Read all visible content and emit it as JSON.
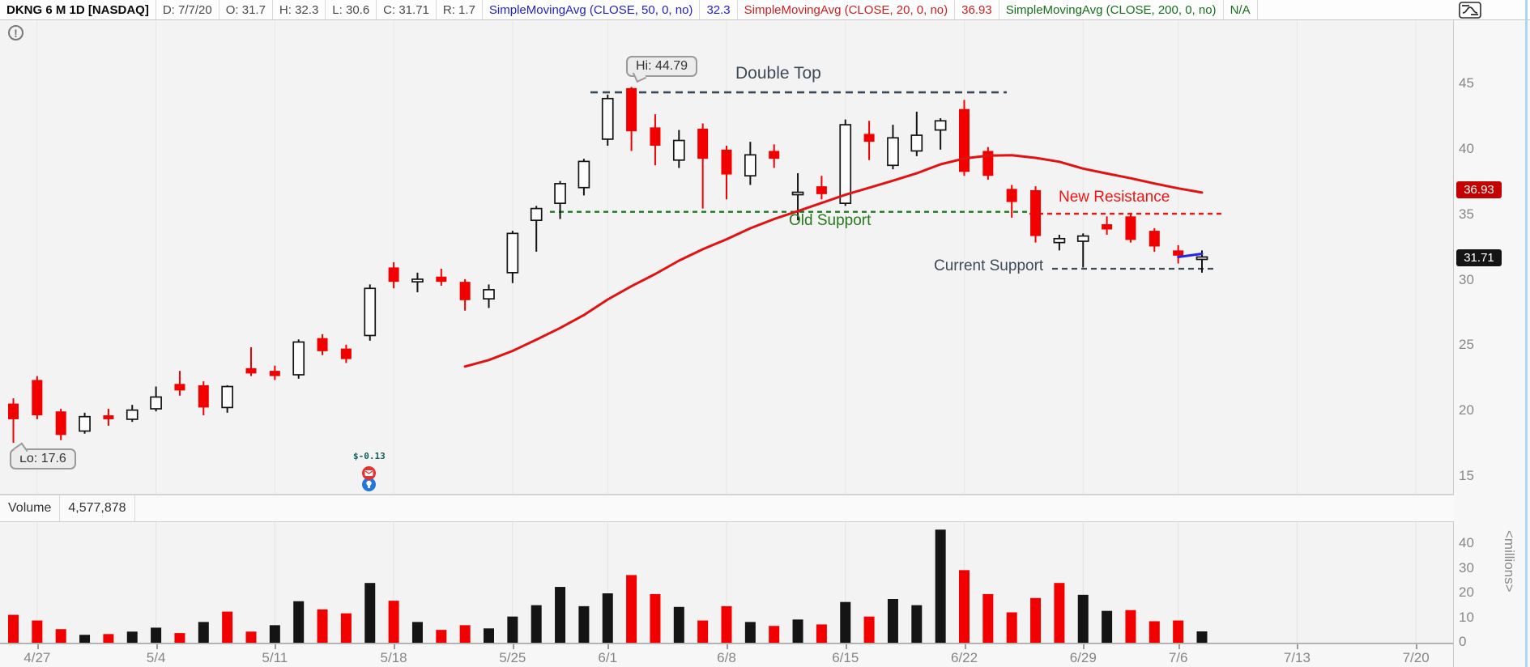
{
  "toolbar": {
    "cells": [
      {
        "text": "DKNG 6 M 1D [NASDAQ]",
        "style": "sym"
      },
      {
        "text": "D: 7/7/20",
        "style": "plain"
      },
      {
        "text": "O: 31.7",
        "style": "plain"
      },
      {
        "text": "H: 32.3",
        "style": "plain"
      },
      {
        "text": "L: 30.6",
        "style": "plain"
      },
      {
        "text": "C: 31.71",
        "style": "plain"
      },
      {
        "text": "R: 1.7",
        "style": "plain"
      },
      {
        "text": "SimpleMovingAvg (CLOSE, 50, 0, no)",
        "style": "blue"
      },
      {
        "text": "32.3",
        "style": "blue"
      },
      {
        "text": "SimpleMovingAvg (CLOSE, 20, 0, no)",
        "style": "red"
      },
      {
        "text": "36.93",
        "style": "red"
      },
      {
        "text": "SimpleMovingAvg (CLOSE, 200, 0, no)",
        "style": "green"
      },
      {
        "text": "N/A",
        "style": "green"
      }
    ],
    "colors": {
      "blue": "#2323cc",
      "red": "#cf2020",
      "green": "#17701c"
    }
  },
  "volume_header": {
    "label": "Volume",
    "value": "4,577,878"
  },
  "badges": {
    "sma20": "36.93",
    "last_price": "31.71"
  },
  "tooltips": {
    "hi": "Hi: 44.79",
    "lo": "Lo: 17.6"
  },
  "info_icon": "!",
  "earnings_marker": {
    "label": "$-0.13"
  },
  "millions_label": "<millions>",
  "chart_data": {
    "type": "candlestick",
    "title": "DKNG 6 M 1D [NASDAQ]",
    "ylim": [
      15,
      46
    ],
    "price_axis_ticks": [
      45,
      40,
      35,
      30,
      25,
      20,
      15
    ],
    "volume_axis_ticks": [
      40,
      30,
      20,
      10,
      0
    ],
    "x_gridlines": [
      {
        "label": "4/27",
        "k": 1
      },
      {
        "label": "5/4",
        "k": 6
      },
      {
        "label": "5/11",
        "k": 11
      },
      {
        "label": "5/18",
        "k": 16
      },
      {
        "label": "5/25",
        "k": 21
      },
      {
        "label": "6/1",
        "k": 25
      },
      {
        "label": "6/8",
        "k": 30
      },
      {
        "label": "6/15",
        "k": 35
      },
      {
        "label": "6/22",
        "k": 40
      },
      {
        "label": "6/29",
        "k": 45
      },
      {
        "label": "7/6",
        "k": 49
      },
      {
        "label": "7/13",
        "k": 54
      },
      {
        "label": "7/20",
        "k": 59
      }
    ],
    "dates": [
      "4/24",
      "4/27",
      "4/28",
      "4/29",
      "4/30",
      "5/1",
      "5/4",
      "5/5",
      "5/6",
      "5/7",
      "5/8",
      "5/11",
      "5/12",
      "5/13",
      "5/14",
      "5/15",
      "5/18",
      "5/19",
      "5/20",
      "5/21",
      "5/22",
      "5/26",
      "5/27",
      "5/28",
      "5/29",
      "6/1",
      "6/2",
      "6/3",
      "6/4",
      "6/5",
      "6/8",
      "6/9",
      "6/10",
      "6/11",
      "6/12",
      "6/15",
      "6/16",
      "6/17",
      "6/18",
      "6/19",
      "6/22",
      "6/23",
      "6/24",
      "6/25",
      "6/26",
      "6/29",
      "6/30",
      "7/1",
      "7/2",
      "7/6",
      "7/7"
    ],
    "ohlc": [
      [
        20.6,
        21.0,
        17.6,
        19.4
      ],
      [
        22.4,
        22.7,
        19.4,
        19.7
      ],
      [
        20.0,
        20.2,
        17.8,
        18.2
      ],
      [
        18.5,
        19.9,
        18.3,
        19.6
      ],
      [
        19.7,
        20.2,
        18.9,
        19.4
      ],
      [
        19.4,
        20.5,
        19.2,
        20.1
      ],
      [
        20.2,
        21.9,
        20.0,
        21.1
      ],
      [
        22.1,
        23.1,
        21.2,
        21.6
      ],
      [
        22.0,
        22.3,
        19.7,
        20.3
      ],
      [
        20.3,
        22.0,
        19.9,
        21.9
      ],
      [
        23.3,
        24.9,
        22.7,
        22.9
      ],
      [
        23.1,
        23.5,
        22.4,
        22.7
      ],
      [
        22.8,
        25.5,
        22.5,
        25.3
      ],
      [
        25.6,
        25.9,
        24.3,
        24.6
      ],
      [
        24.8,
        25.1,
        23.7,
        24.0
      ],
      [
        25.8,
        29.7,
        25.4,
        29.4
      ],
      [
        31.0,
        31.4,
        29.4,
        29.9
      ],
      [
        29.9,
        30.6,
        29.1,
        30.1
      ],
      [
        30.3,
        30.9,
        29.6,
        29.9
      ],
      [
        29.9,
        30.1,
        27.7,
        28.5
      ],
      [
        28.6,
        29.7,
        27.9,
        29.3
      ],
      [
        30.6,
        33.8,
        29.8,
        33.6
      ],
      [
        34.6,
        35.7,
        32.2,
        35.5
      ],
      [
        35.9,
        37.6,
        34.7,
        37.4
      ],
      [
        37.1,
        39.3,
        36.5,
        39.1
      ],
      [
        40.8,
        44.2,
        40.3,
        43.9
      ],
      [
        44.7,
        44.79,
        39.9,
        41.4
      ],
      [
        41.7,
        42.7,
        38.8,
        40.3
      ],
      [
        39.2,
        41.5,
        38.6,
        40.7
      ],
      [
        41.6,
        42.0,
        35.5,
        39.3
      ],
      [
        40.0,
        40.3,
        36.2,
        38.1
      ],
      [
        38.0,
        40.6,
        37.3,
        39.6
      ],
      [
        39.9,
        40.4,
        38.6,
        39.3
      ],
      [
        36.6,
        38.2,
        34.6,
        36.7
      ],
      [
        37.2,
        38.0,
        36.2,
        36.6
      ],
      [
        35.9,
        42.3,
        35.7,
        41.9
      ],
      [
        41.2,
        42.2,
        39.2,
        40.6
      ],
      [
        38.8,
        41.9,
        38.5,
        40.9
      ],
      [
        39.9,
        42.9,
        39.5,
        41.1
      ],
      [
        41.5,
        42.4,
        40.0,
        42.2
      ],
      [
        43.1,
        43.8,
        38.0,
        38.3
      ],
      [
        39.9,
        40.2,
        37.7,
        38.0
      ],
      [
        37.0,
        37.3,
        34.8,
        36.0
      ],
      [
        36.9,
        37.2,
        32.9,
        33.4
      ],
      [
        32.9,
        33.5,
        32.3,
        33.2
      ],
      [
        33.0,
        33.6,
        31.0,
        33.4
      ],
      [
        34.3,
        34.9,
        33.5,
        33.9
      ],
      [
        34.9,
        35.1,
        32.9,
        33.1
      ],
      [
        33.8,
        34.0,
        32.2,
        32.6
      ],
      [
        32.3,
        32.7,
        31.3,
        31.9
      ],
      [
        31.7,
        32.3,
        30.6,
        31.71
      ]
    ],
    "volume_millions": [
      11.3,
      9.0,
      5.5,
      3.2,
      3.5,
      4.5,
      6.1,
      3.9,
      8.4,
      12.6,
      4.5,
      7.1,
      16.8,
      13.5,
      11.9,
      24.2,
      17.0,
      8.4,
      5.2,
      7.1,
      5.8,
      10.6,
      15.2,
      22.6,
      14.8,
      20.0,
      27.4,
      19.7,
      14.5,
      9.0,
      14.8,
      8.4,
      6.8,
      9.4,
      7.4,
      16.5,
      10.6,
      17.7,
      15.2,
      45.8,
      29.4,
      19.7,
      12.3,
      18.1,
      24.2,
      19.4,
      12.9,
      13.2,
      8.7,
      9.0,
      4.58
    ],
    "volume_colors": [
      "red",
      "red",
      "red",
      "black",
      "red",
      "black",
      "black",
      "red",
      "black",
      "red",
      "red",
      "black",
      "black",
      "red",
      "red",
      "black",
      "red",
      "black",
      "red",
      "red",
      "black",
      "black",
      "black",
      "black",
      "black",
      "black",
      "red",
      "red",
      "black",
      "red",
      "red",
      "black",
      "red",
      "black",
      "red",
      "black",
      "red",
      "black",
      "black",
      "black",
      "red",
      "red",
      "red",
      "red",
      "red",
      "black",
      "black",
      "red",
      "red",
      "red",
      "black"
    ],
    "moving_averages": [
      {
        "name": "SMA20",
        "period": 20,
        "color": "#e01212",
        "last_value": 36.93
      },
      {
        "name": "SMA50",
        "period": 50,
        "color": "#2626e8",
        "last_value": 32.3
      }
    ],
    "annotations": {
      "double_top": {
        "text": "Double Top",
        "price": 44.38,
        "x_from": 729,
        "x_to": 1243,
        "color": "#3d4a57"
      },
      "old_support": {
        "text": "Old Support",
        "price": 35.25,
        "x_from": 679,
        "x_to": 1271,
        "color": "#1d7a1d"
      },
      "new_resistance": {
        "text": "New Resistance",
        "price": 35.1,
        "x_from": 1271,
        "x_to": 1512,
        "color": "#f21414"
      },
      "current_support": {
        "text": "Current Support",
        "price": 30.9,
        "x_from": 1299,
        "x_to": 1500,
        "color": "#3d4a57"
      }
    },
    "hi_marker": {
      "value": 44.79,
      "candle_index": 26
    },
    "lo_marker": {
      "value": 17.6,
      "candle_index": 0
    },
    "colors": {
      "down": "#f20000",
      "up_outline": "#141414",
      "vol_black": "#141414",
      "vol_red": "#f20000"
    }
  }
}
